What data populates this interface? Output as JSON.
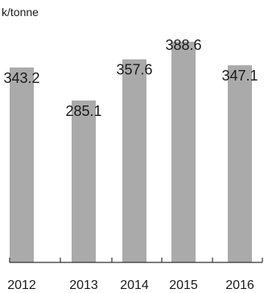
{
  "chart_data": {
    "type": "bar",
    "unit_label": "k/tonne",
    "categories": [
      "2012",
      "2013",
      "2014",
      "2015",
      "2016"
    ],
    "values": [
      343.2,
      285.1,
      357.6,
      388.6,
      347.1
    ],
    "value_labels": [
      "343.2",
      "285.1",
      "357.6",
      "388.6",
      "347.1"
    ],
    "ylim": [
      0,
      400
    ],
    "grid": false,
    "legend": "none",
    "bar_color": "#aaaaaa",
    "axis_color": "#333333"
  }
}
